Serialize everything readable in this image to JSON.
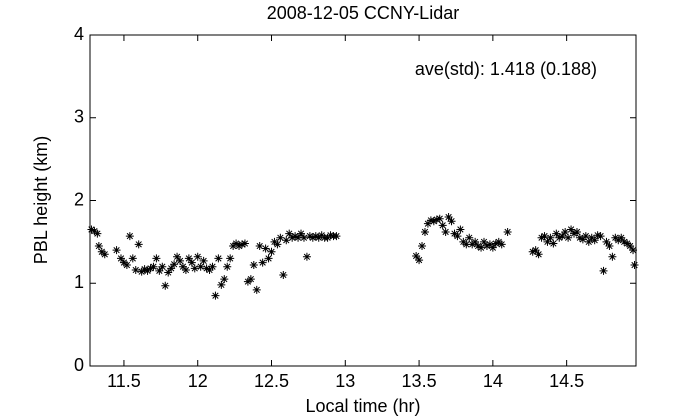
{
  "chart_data": {
    "type": "scatter",
    "title": "2008-12-05 CCNY-Lidar",
    "xlabel": "Local time (hr)",
    "ylabel": "PBL height (km)",
    "annotation": "ave(std): 1.418 (0.188)",
    "color": "#000000",
    "xlim": [
      11.27,
      14.97
    ],
    "ylim": [
      0,
      4
    ],
    "xticks": [
      11.5,
      12,
      12.5,
      13,
      13.5,
      14,
      14.5
    ],
    "yticks": [
      0,
      1,
      2,
      3,
      4
    ],
    "x": [
      11.28,
      11.3,
      11.32,
      11.33,
      11.35,
      11.37,
      11.45,
      11.48,
      11.5,
      11.52,
      11.54,
      11.56,
      11.58,
      11.6,
      11.62,
      11.64,
      11.66,
      11.68,
      11.7,
      11.72,
      11.74,
      11.76,
      11.78,
      11.8,
      11.82,
      11.84,
      11.86,
      11.88,
      11.9,
      11.92,
      11.94,
      11.96,
      11.98,
      12.0,
      12.02,
      12.04,
      12.06,
      12.08,
      12.1,
      12.12,
      12.14,
      12.16,
      12.18,
      12.2,
      12.22,
      12.24,
      12.26,
      12.28,
      12.3,
      12.32,
      12.34,
      12.36,
      12.38,
      12.4,
      12.42,
      12.44,
      12.46,
      12.48,
      12.5,
      12.52,
      12.54,
      12.56,
      12.58,
      12.6,
      12.62,
      12.64,
      12.66,
      12.68,
      12.7,
      12.72,
      12.74,
      12.76,
      12.78,
      12.8,
      12.82,
      12.84,
      12.86,
      12.88,
      12.9,
      12.92,
      12.94,
      13.48,
      13.5,
      13.52,
      13.54,
      13.56,
      13.58,
      13.6,
      13.62,
      13.64,
      13.66,
      13.68,
      13.7,
      13.72,
      13.74,
      13.76,
      13.78,
      13.8,
      13.82,
      13.84,
      13.86,
      13.88,
      13.9,
      13.92,
      13.94,
      13.96,
      13.98,
      14.0,
      14.02,
      14.04,
      14.06,
      14.1,
      14.27,
      14.29,
      14.31,
      14.33,
      14.35,
      14.37,
      14.39,
      14.41,
      14.43,
      14.45,
      14.47,
      14.49,
      14.51,
      14.53,
      14.55,
      14.57,
      14.59,
      14.61,
      14.63,
      14.65,
      14.67,
      14.69,
      14.71,
      14.73,
      14.75,
      14.77,
      14.79,
      14.81,
      14.83,
      14.85,
      14.87,
      14.89,
      14.91,
      14.93,
      14.95,
      14.96
    ],
    "values": [
      1.65,
      1.63,
      1.6,
      1.45,
      1.38,
      1.35,
      1.4,
      1.3,
      1.25,
      1.22,
      1.57,
      1.3,
      1.16,
      1.47,
      1.14,
      1.17,
      1.15,
      1.18,
      1.2,
      1.3,
      1.15,
      1.2,
      0.97,
      1.13,
      1.18,
      1.23,
      1.32,
      1.27,
      1.2,
      1.16,
      1.3,
      1.25,
      1.18,
      1.32,
      1.2,
      1.27,
      1.18,
      1.16,
      1.2,
      0.85,
      1.3,
      0.98,
      1.05,
      1.2,
      1.3,
      1.45,
      1.48,
      1.45,
      1.47,
      1.48,
      1.02,
      1.05,
      1.22,
      0.92,
      1.45,
      1.25,
      1.42,
      1.3,
      1.38,
      1.5,
      1.47,
      1.55,
      1.1,
      1.52,
      1.6,
      1.55,
      1.57,
      1.55,
      1.6,
      1.55,
      1.32,
      1.57,
      1.55,
      1.57,
      1.55,
      1.58,
      1.55,
      1.55,
      1.58,
      1.57,
      1.57,
      1.33,
      1.28,
      1.45,
      1.62,
      1.72,
      1.76,
      1.75,
      1.77,
      1.78,
      1.7,
      1.62,
      1.8,
      1.75,
      1.6,
      1.57,
      1.65,
      1.5,
      1.47,
      1.55,
      1.47,
      1.5,
      1.45,
      1.43,
      1.5,
      1.45,
      1.47,
      1.43,
      1.48,
      1.5,
      1.47,
      1.62,
      1.38,
      1.4,
      1.35,
      1.55,
      1.57,
      1.5,
      1.55,
      1.48,
      1.6,
      1.55,
      1.57,
      1.62,
      1.55,
      1.65,
      1.6,
      1.62,
      1.55,
      1.53,
      1.57,
      1.5,
      1.55,
      1.52,
      1.58,
      1.57,
      1.15,
      1.5,
      1.45,
      1.32,
      1.55,
      1.52,
      1.55,
      1.5,
      1.48,
      1.45,
      1.4,
      1.22
    ]
  }
}
